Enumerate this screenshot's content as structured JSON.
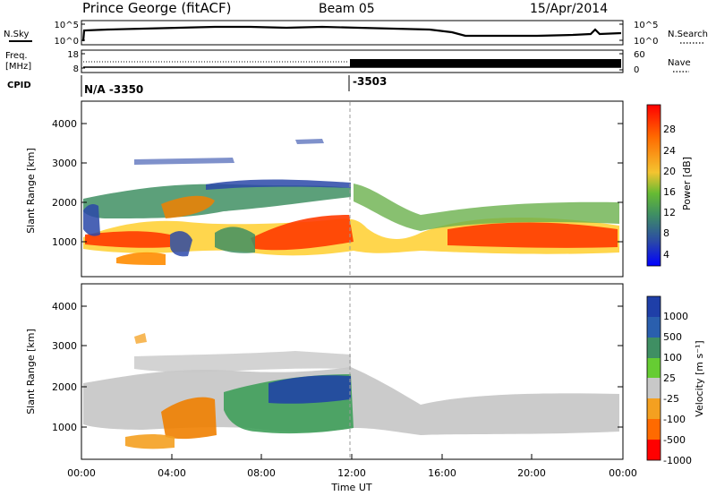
{
  "header": {
    "title": "Prince George (fitACF)",
    "beam": "Beam 05",
    "date": "15/Apr/2014"
  },
  "top_panels": {
    "nsky_label": "N.Sky",
    "nsky_ticks": [
      "10^5",
      "10^0"
    ],
    "nsearch_label": "N.Search",
    "nsearch_ticks": [
      "10^5",
      "10^0"
    ],
    "freq_label_1": "Freq.",
    "freq_label_2": "[MHz]",
    "freq_ticks": [
      "18",
      "8"
    ],
    "nave_label": "Nave",
    "nave_ticks": [
      "60",
      "0"
    ],
    "cpid_label": "CPID",
    "cpid_values": [
      {
        "time_hours": 0,
        "label": "N/A -3350"
      },
      {
        "time_hours": 12,
        "label": "-3503"
      }
    ]
  },
  "chart_data": [
    {
      "type": "heatmap",
      "name": "power",
      "ylabel": "Slant Range [km]",
      "yticks": [
        "1000",
        "2000",
        "3000",
        "4000"
      ],
      "ylim": [
        0,
        4500
      ],
      "xlim": [
        0,
        24
      ],
      "colorbar_label": "Power [dB]",
      "colorbar_ticks": [
        "4",
        "8",
        "12",
        "16",
        "20",
        "24",
        "28"
      ],
      "colorbar_colors": [
        "#0000ff",
        "#2a48a8",
        "#3f8f63",
        "#5fbf4a",
        "#f4c430",
        "#ff8c00",
        "#ff4500",
        "#ff0000"
      ]
    },
    {
      "type": "heatmap",
      "name": "velocity",
      "ylabel": "Slant Range [km]",
      "yticks": [
        "1000",
        "2000",
        "3000",
        "4000"
      ],
      "ylim": [
        0,
        4500
      ],
      "xlim": [
        0,
        24
      ],
      "xlabel": "Time UT",
      "xticks": [
        "00:00",
        "04:00",
        "08:00",
        "12:00",
        "16:00",
        "20:00",
        "00:00"
      ],
      "colorbar_label": "Velocity [m s⁻¹]",
      "colorbar_ticks": [
        "1000",
        "500",
        "100",
        "25",
        "-25",
        "-100",
        "-500",
        "-1000"
      ],
      "colorbar_colors": [
        "#1f3fa8",
        "#2a5fae",
        "#3f8f63",
        "#66cc33",
        "#c8c8c8",
        "#f4a020",
        "#ff6a00",
        "#ff0000"
      ]
    }
  ]
}
